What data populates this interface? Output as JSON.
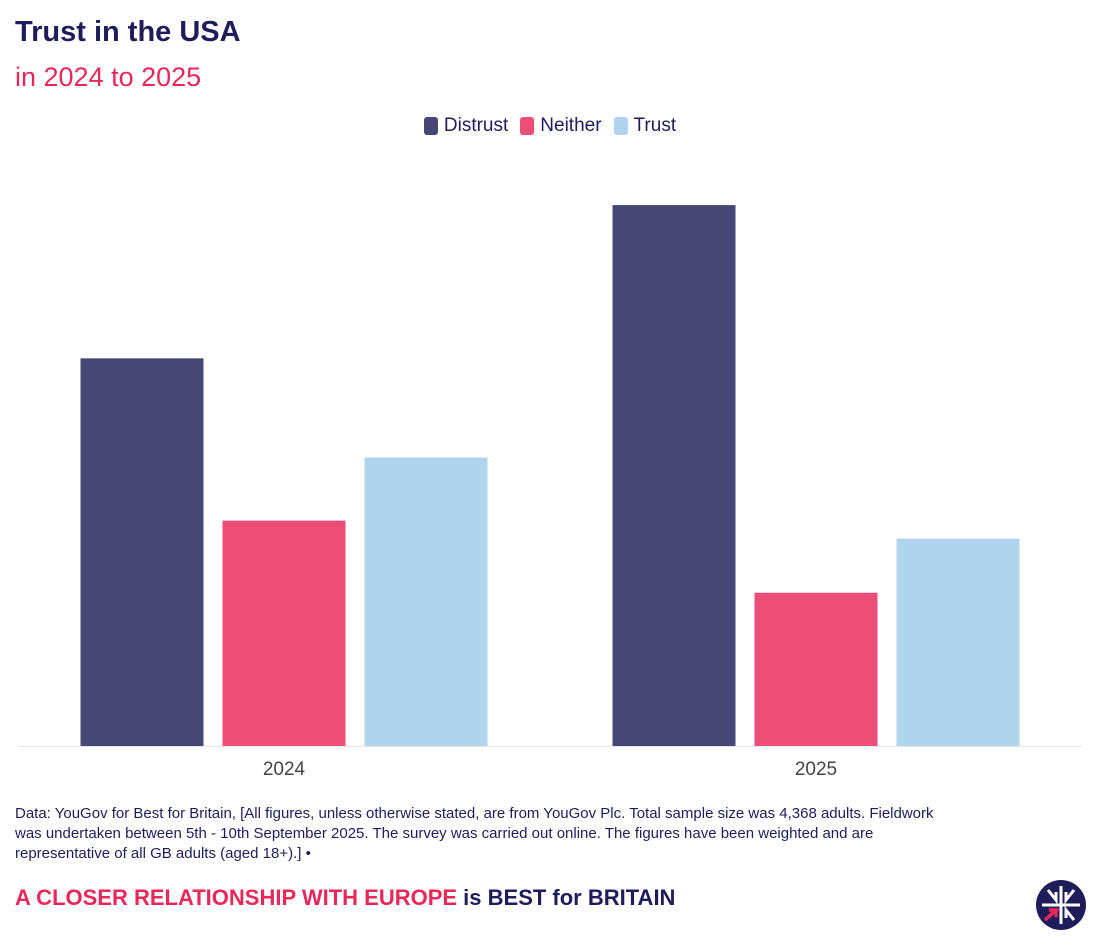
{
  "chart_data": {
    "type": "bar",
    "title": "Trust in the USA",
    "subtitle": "in 2024 to 2025",
    "categories": [
      "2024",
      "2025"
    ],
    "series": [
      {
        "name": "Distrust",
        "color": "#464775",
        "values": [
          43,
          60
        ]
      },
      {
        "name": "Neither",
        "color": "#ee4e76",
        "values": [
          25,
          17
        ]
      },
      {
        "name": "Trust",
        "color": "#b0d4ed",
        "values": [
          32,
          23
        ]
      }
    ],
    "xlabel": "",
    "ylabel": "",
    "ylim": [
      0,
      65
    ],
    "grid": false,
    "legend": "top-center"
  },
  "note": "Data: YouGov for Best for Britain, [All figures, unless otherwise stated, are from YouGov Plc. Total sample size was 4,368 adults. Fieldwork was undertaken between 5th - 10th September 2025. The survey was carried out online. The figures have been weighted and are representative of all GB adults (aged 18+).] •",
  "tagline": {
    "highlight": "A CLOSER RELATIONSHIP WITH EUROPE",
    "rest": " is BEST for BRITAIN"
  },
  "logo": "Best for Britain"
}
